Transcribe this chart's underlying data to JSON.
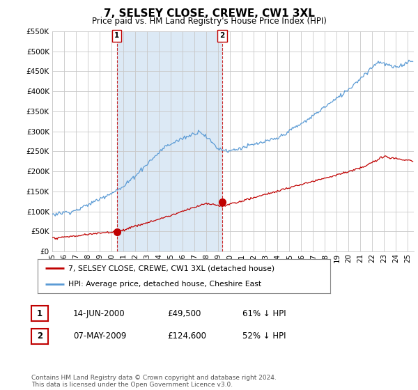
{
  "title": "7, SELSEY CLOSE, CREWE, CW1 3XL",
  "subtitle": "Price paid vs. HM Land Registry's House Price Index (HPI)",
  "hpi_color": "#5b9bd5",
  "price_color": "#c00000",
  "background_color": "#ffffff",
  "plot_bg_color": "#ffffff",
  "shade_color": "#dce9f5",
  "grid_color": "#c8c8c8",
  "ylim": [
    0,
    550000
  ],
  "yticks": [
    0,
    50000,
    100000,
    150000,
    200000,
    250000,
    300000,
    350000,
    400000,
    450000,
    500000,
    550000
  ],
  "xlim_start": 1995.3,
  "xlim_end": 2025.5,
  "transaction1": {
    "date_num": 2000.45,
    "price": 49500,
    "label": "1"
  },
  "transaction2": {
    "date_num": 2009.35,
    "price": 124600,
    "label": "2"
  },
  "legend_price_label": "7, SELSEY CLOSE, CREWE, CW1 3XL (detached house)",
  "legend_hpi_label": "HPI: Average price, detached house, Cheshire East",
  "table_rows": [
    {
      "num": "1",
      "date": "14-JUN-2000",
      "price": "£49,500",
      "pct": "61% ↓ HPI"
    },
    {
      "num": "2",
      "date": "07-MAY-2009",
      "price": "£124,600",
      "pct": "52% ↓ HPI"
    }
  ],
  "footnote": "Contains HM Land Registry data © Crown copyright and database right 2024.\nThis data is licensed under the Open Government Licence v3.0.",
  "xtick_years": [
    1995,
    1996,
    1997,
    1998,
    1999,
    2000,
    2001,
    2002,
    2003,
    2004,
    2005,
    2006,
    2007,
    2008,
    2009,
    2010,
    2011,
    2012,
    2013,
    2014,
    2015,
    2016,
    2017,
    2018,
    2019,
    2020,
    2021,
    2022,
    2023,
    2024,
    2025
  ]
}
